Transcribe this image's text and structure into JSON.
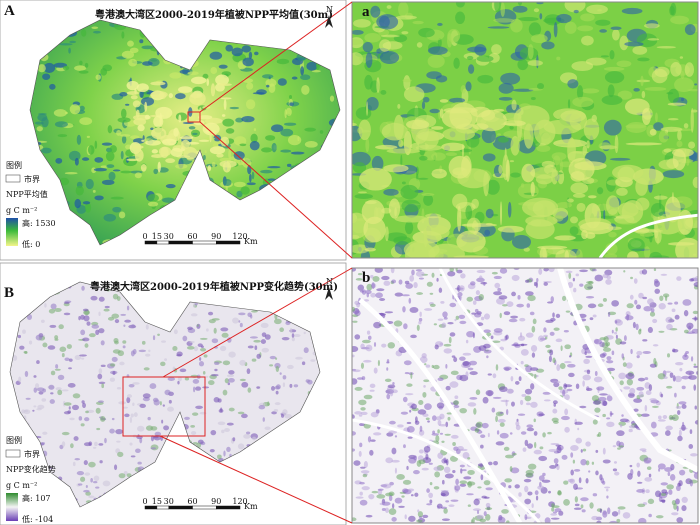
{
  "panels": [
    {
      "letter": "A",
      "title": "粤港澳大湾区2000-2019年植被NPP平均值(30m)",
      "north": "N",
      "legend": {
        "title": "图例",
        "boundary": "市界",
        "variable": "NPP平均值",
        "unit": "g C m⁻²",
        "high": "高: 1530",
        "low": "低: 0"
      },
      "scale": {
        "ticks": [
          0,
          15,
          30,
          60,
          90,
          120
        ],
        "unit": "Km"
      },
      "inset": "a"
    },
    {
      "letter": "B",
      "title": "粤港澳大湾区2000-2019年植被NPP变化趋势(30m)",
      "north": "N",
      "legend": {
        "title": "图例",
        "boundary": "市界",
        "variable": "NPP变化趋势",
        "unit": "g C m⁻²",
        "high": "高: 107",
        "low": "低: -104"
      },
      "scale": {
        "ticks": [
          0,
          15,
          30,
          60,
          90,
          120
        ],
        "unit": "Km"
      },
      "inset": "b"
    }
  ]
}
